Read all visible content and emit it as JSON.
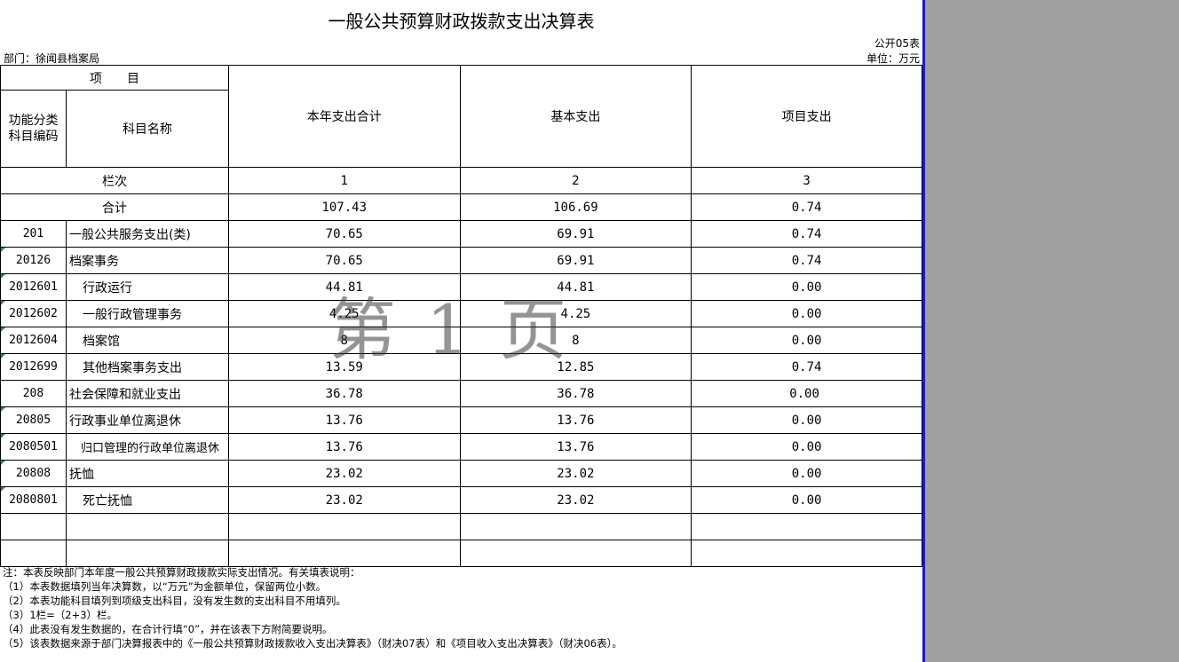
{
  "title": "一般公共预算财政拨款支出决算表",
  "form_no": "公开05表",
  "department": "部门：徐闻县档案局",
  "unit": "单位：万元",
  "header": {
    "item": "项　　目",
    "code": "功能分类\n科目编码",
    "name": "科目名称",
    "col1": "本年支出合计",
    "col2": "基本支出",
    "col3": "项目支出",
    "row_no_label": "栏次",
    "row_no_1": "1",
    "row_no_2": "2",
    "row_no_3": "3"
  },
  "total": {
    "label": "合计",
    "c1": "107.43",
    "c2": "106.69",
    "c3": "0.74"
  },
  "rows": [
    {
      "code": "201",
      "name": "一般公共服务支出(类)",
      "c1": "70.65",
      "c2": "69.91",
      "c3": "0.74"
    },
    {
      "code": "20126",
      "name": "档案事务",
      "c1": "70.65",
      "c2": "69.91",
      "c3": "0.74"
    },
    {
      "code": "2012601",
      "name": "行政运行",
      "c1": "44.81",
      "c2": "44.81",
      "c3": "0.00"
    },
    {
      "code": "2012602",
      "name": "一般行政管理事务",
      "c1": "4.25",
      "c2": "4.25",
      "c3": "0.00"
    },
    {
      "code": "2012604",
      "name": "档案馆",
      "c1": "8",
      "c2": "8",
      "c3": "0.00"
    },
    {
      "code": "2012699",
      "name": "其他档案事务支出",
      "c1": "13.59",
      "c2": "12.85",
      "c3": "0.74"
    },
    {
      "code": "208",
      "name": "社会保障和就业支出",
      "c1": "36.78",
      "c2": "36.78",
      "c3": "0.00"
    },
    {
      "code": "20805",
      "name": "行政事业单位离退休",
      "c1": "13.76",
      "c2": "13.76",
      "c3": "0.00"
    },
    {
      "code": "2080501",
      "name": "归口管理的行政单位离退休",
      "c1": "13.76",
      "c2": "13.76",
      "c3": "0.00"
    },
    {
      "code": "20808",
      "name": "抚恤",
      "c1": "23.02",
      "c2": "23.02",
      "c3": "0.00"
    },
    {
      "code": "2080801",
      "name": "死亡抚恤",
      "c1": "23.02",
      "c2": "23.02",
      "c3": "0.00"
    }
  ],
  "notes": [
    "注：本表反映部门本年度一般公共预算财政拨款实际支出情况。有关填表说明：",
    "（1）本表数据填列当年决算数，以“万元”为金额单位，保留两位小数。",
    "（2）本表功能科目填列到项级支出科目，没有发生数的支出科目不用填列。",
    "（3）1栏=（2+3）栏。",
    "（4）此表没有发生数据的，在合计行填“0”，并在该表下方附简要说明。",
    "（5）该表数据来源于部门决算报表中的《一般公共预算财政拨款收入支出决算表》（财决07表）和《项目收入支出决算表》（财决06表）。"
  ],
  "watermark": "第1页"
}
